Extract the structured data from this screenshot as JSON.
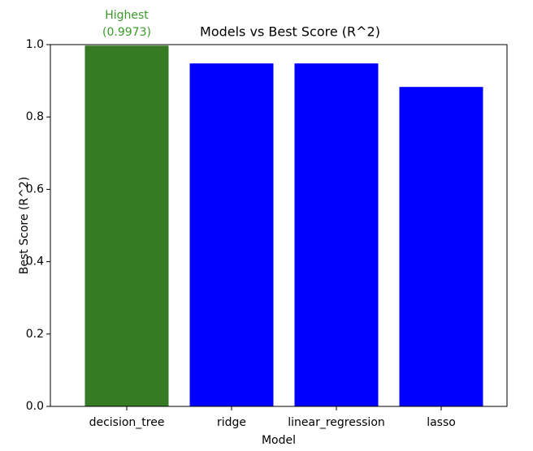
{
  "chart_data": {
    "type": "bar",
    "title": "Models vs Best Score (R^2)",
    "x_label": "Model",
    "y_label": "Best Score (R^2)",
    "categories": [
      "decision_tree",
      "ridge",
      "linear_regression",
      "lasso"
    ],
    "values": [
      0.9973,
      0.948,
      0.948,
      0.883
    ],
    "colors": [
      "#367a23",
      "#0000ff",
      "#0000ff",
      "#0000ff"
    ],
    "annotation": {
      "lines": [
        "Highest",
        "(0.9973)"
      ],
      "color": "#3a9a2a"
    },
    "ylim": [
      0,
      1
    ],
    "yticks": [
      {
        "value": 0,
        "label": "0.0"
      },
      {
        "value": 0.2,
        "label": "0.2"
      },
      {
        "value": 0.4,
        "label": "0.4"
      },
      {
        "value": 0.6,
        "label": "0.6"
      },
      {
        "value": 0.8,
        "label": "0.8"
      },
      {
        "value": 1,
        "label": "1.0"
      }
    ]
  }
}
